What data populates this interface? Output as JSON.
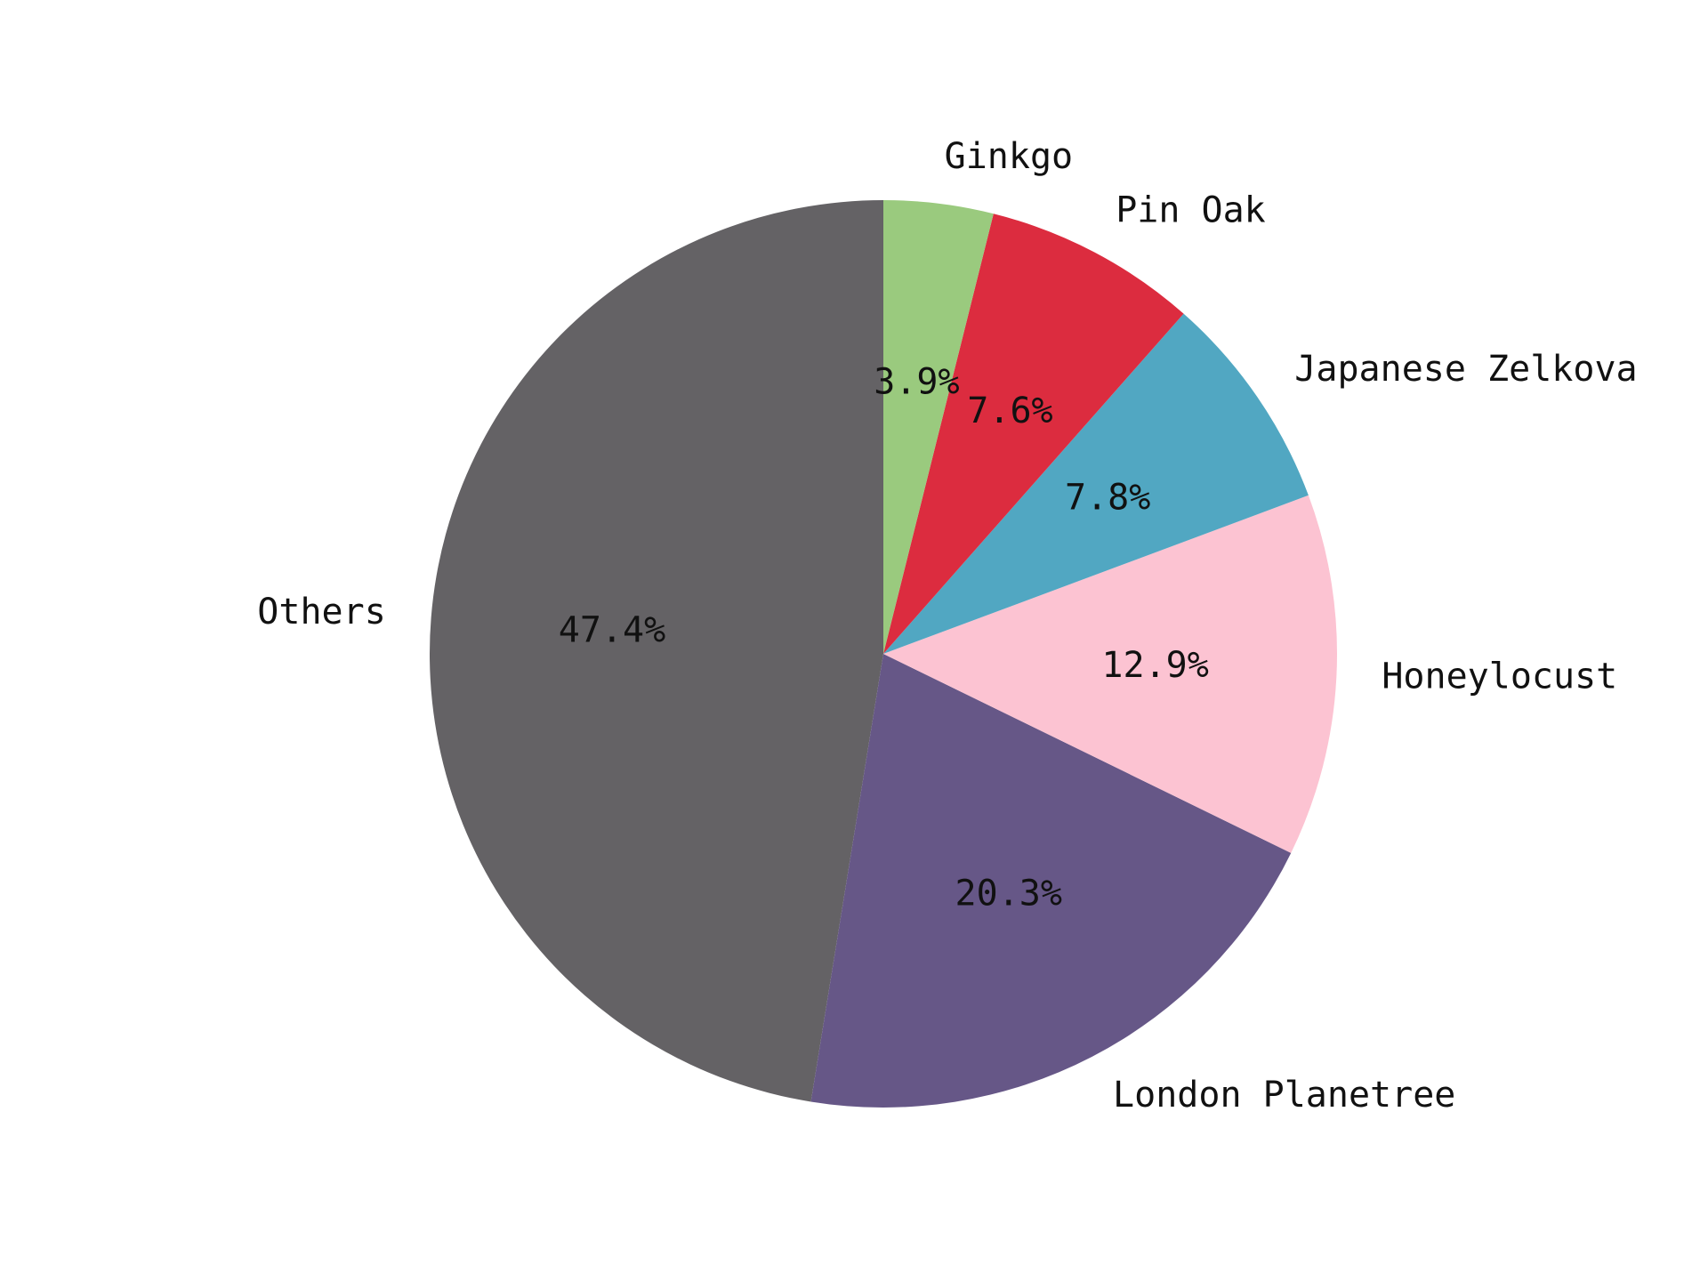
{
  "chart_data": {
    "type": "pie",
    "title": "",
    "slices": [
      {
        "label": "Others",
        "value": 47.4,
        "value_label": "47.4%",
        "color": "#646265"
      },
      {
        "label": "London Planetree",
        "value": 20.3,
        "value_label": "20.3%",
        "color": "#665787"
      },
      {
        "label": "Honeylocust",
        "value": 12.9,
        "value_label": "12.9%",
        "color": "#fcc3d2"
      },
      {
        "label": "Japanese Zelkova",
        "value": 7.8,
        "value_label": "7.8%",
        "color": "#51a7c2"
      },
      {
        "label": "Pin Oak",
        "value": 7.6,
        "value_label": "7.6%",
        "color": "#dc2c3f"
      },
      {
        "label": "Ginkgo",
        "value": 3.9,
        "value_label": "3.9%",
        "color": "#9aca7e"
      }
    ],
    "start_angle": "90° (12 o'clock)",
    "direction": "counterclockwise",
    "legend": "none"
  }
}
